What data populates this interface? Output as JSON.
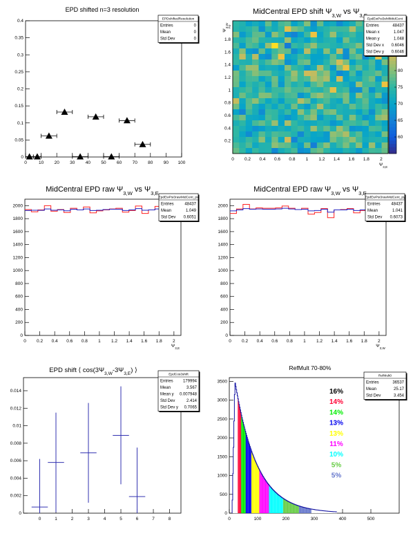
{
  "chart_data": [
    {
      "id": "p1",
      "type": "scatter",
      "title": "EPD shifted n=3 resolution",
      "stats": {
        "name": "EPDshiftedResolution",
        "rows": [
          [
            "Entries",
            "0"
          ],
          [
            "Mean",
            "0"
          ],
          [
            "Std Dev",
            "0"
          ]
        ]
      },
      "xlim": [
        0,
        100
      ],
      "ylim": [
        0,
        0.4
      ],
      "xticks": [
        "0",
        "10",
        "20",
        "30",
        "40",
        "50",
        "60",
        "70",
        "80",
        "90",
        "100"
      ],
      "yticks": [
        "0",
        "0.05",
        "0.1",
        "0.15",
        "0.2",
        "0.25",
        "0.3",
        "0.35",
        "0.4"
      ],
      "points": [
        [
          2.5,
          0.001,
          2.5
        ],
        [
          7.5,
          0.001,
          2.5
        ],
        [
          15,
          0.062,
          5
        ],
        [
          25,
          0.132,
          5
        ],
        [
          35,
          0.001,
          5
        ],
        [
          45,
          0.118,
          5
        ],
        [
          55,
          0.001,
          5
        ],
        [
          65,
          0.107,
          5
        ],
        [
          75,
          0.037,
          5
        ]
      ]
    },
    {
      "id": "p2",
      "type": "heatmap",
      "title": "MidCentral EPD shift Ψ3,W vs Ψ3,E",
      "xlabel": "Ψ3,E",
      "ylabel": "Ψ3,W",
      "stats": {
        "name": "EpdEwPsi3shiftMidCent",
        "rows": [
          [
            "Entries",
            "48437"
          ],
          [
            "Mean x",
            "1.047"
          ],
          [
            "Mean y",
            "1.048"
          ],
          [
            "Std Dev x",
            "0.6046"
          ],
          [
            "Std Dev y",
            "0.6046"
          ]
        ]
      },
      "xlim": [
        0,
        2.094
      ],
      "ylim": [
        0,
        2.094
      ],
      "xticks": [
        "0",
        "0.2",
        "0.4",
        "0.6",
        "0.8",
        "1",
        "1.2",
        "1.4",
        "1.6",
        "1.8",
        "2"
      ],
      "yticks": [
        "0.2",
        "0.4",
        "0.6",
        "0.8",
        "1",
        "1.2",
        "1.4",
        "1.6",
        "1.8",
        "2"
      ],
      "zlim": [
        55,
        95
      ],
      "zticks": [
        "60",
        "65",
        "70",
        "75",
        "80",
        "85",
        "90"
      ],
      "nbins": 24
    },
    {
      "id": "p3",
      "type": "line",
      "title": "MidCentral EPD raw Ψ3,W vs Ψ3,E",
      "xlabel": "Ψ3,E",
      "stats": {
        "name": "EpdEwPsi3rawMidCent_px",
        "rows": [
          [
            "Entries",
            "48437"
          ],
          [
            "Mean",
            "1.049"
          ],
          [
            "Std Dev",
            "0.6051"
          ]
        ]
      },
      "xlim": [
        0,
        2.094
      ],
      "ylim": [
        0,
        2100
      ],
      "xticks": [
        "0",
        "0.2",
        "0.4",
        "0.6",
        "0.8",
        "1",
        "1.2",
        "1.4",
        "1.6",
        "1.8",
        "2"
      ],
      "yticks": [
        "0",
        "200",
        "400",
        "600",
        "800",
        "1000",
        "1200",
        "1400",
        "1600",
        "1800",
        "2000"
      ],
      "series": [
        {
          "color": "#ff2020",
          "values": [
            1940,
            1905,
            1935,
            2000,
            1915,
            1940,
            1895,
            1960,
            1935,
            1980,
            1890,
            1920,
            1935,
            1950,
            1960,
            1900,
            1925,
            1995,
            1880,
            1935,
            1990,
            1885,
            1915,
            1895
          ]
        },
        {
          "color": "#2020c0",
          "values": [
            1925,
            1930,
            1928,
            1950,
            1930,
            1935,
            1922,
            1945,
            1935,
            1950,
            1925,
            1930,
            1940,
            1945,
            1945,
            1925,
            1935,
            1955,
            1930,
            1935,
            1950,
            1930,
            1925,
            1930
          ]
        }
      ]
    },
    {
      "id": "p4",
      "type": "line",
      "title": "MidCentral EPD raw Ψ3,W vs Ψ3,E",
      "xlabel": "Ψ3,W",
      "stats": {
        "name": "EpdEwPsi3rawMidCent_py",
        "rows": [
          [
            "Entries",
            "48437"
          ],
          [
            "Mean",
            "1.041"
          ],
          [
            "Std Dev",
            "0.6073"
          ]
        ]
      },
      "xlim": [
        0,
        2.094
      ],
      "ylim": [
        0,
        2100
      ],
      "xticks": [
        "0",
        "0.2",
        "0.4",
        "0.6",
        "0.8",
        "1",
        "1.2",
        "1.4",
        "1.6",
        "1.8",
        "2"
      ],
      "yticks": [
        "0",
        "200",
        "400",
        "600",
        "800",
        "1000",
        "1200",
        "1400",
        "1600",
        "1800",
        "2000"
      ],
      "series": [
        {
          "color": "#ff2020",
          "values": [
            1880,
            1950,
            2020,
            1950,
            1965,
            1960,
            1960,
            1965,
            1995,
            1960,
            1940,
            1960,
            1870,
            1895,
            1955,
            1815,
            1935,
            1940,
            1955,
            1890,
            1925,
            1960,
            1895,
            1940
          ]
        },
        {
          "color": "#2020c0",
          "values": [
            1920,
            1935,
            1955,
            1945,
            1950,
            1945,
            1945,
            1950,
            1960,
            1950,
            1940,
            1945,
            1920,
            1925,
            1945,
            1900,
            1935,
            1935,
            1945,
            1925,
            1935,
            1945,
            1925,
            1935
          ]
        }
      ]
    },
    {
      "id": "p5",
      "type": "scatter",
      "title": "EPD shift ⟨ cos(3Ψ3,W-3Ψ3,E) ⟩",
      "stats": {
        "name": "EpdCos3shift",
        "rows": [
          [
            "Entries",
            "179994"
          ],
          [
            "Mean",
            "3.567"
          ],
          [
            "Mean y",
            "0.007948"
          ],
          [
            "Std Dev",
            "2.414"
          ],
          [
            "Std Dev y",
            "0.7065"
          ]
        ]
      },
      "xlim": [
        -1,
        8.7
      ],
      "ylim": [
        0,
        0.0155
      ],
      "xticks": [
        "0",
        "1",
        "2",
        "3",
        "4",
        "5",
        "6",
        "7",
        "8"
      ],
      "yticks": [
        "0",
        "0.002",
        "0.004",
        "0.006",
        "0.008",
        "0.01",
        "0.012",
        "0.014"
      ],
      "points": [
        [
          0,
          0.0007,
          0.0055
        ],
        [
          1,
          0.0058,
          0.0057
        ],
        [
          3,
          0.0069,
          0.0057
        ],
        [
          5,
          0.0089,
          0.0056
        ],
        [
          6,
          0.0019,
          0.0056
        ]
      ]
    },
    {
      "id": "p6",
      "type": "bar",
      "title": "RefMult 70-80%",
      "stats": {
        "name": "RefMult0",
        "rows": [
          [
            "Entries",
            "36537"
          ],
          [
            "Mean",
            "25.17"
          ],
          [
            "Std Dev",
            "3.454"
          ]
        ]
      },
      "xlim": [
        0,
        600
      ],
      "ylim": [
        0,
        3600
      ],
      "xticks": [
        "0",
        "100",
        "200",
        "300",
        "400",
        "500"
      ],
      "yticks": [
        "0",
        "500",
        "1000",
        "1500",
        "2000",
        "2500",
        "3000",
        "3500"
      ],
      "bands": [
        {
          "from": 0,
          "to": 30,
          "color": "#ffffff"
        },
        {
          "from": 30,
          "to": 42,
          "color": "#ff0033"
        },
        {
          "from": 42,
          "to": 57,
          "color": "#00ee00"
        },
        {
          "from": 57,
          "to": 78,
          "color": "#0000ee"
        },
        {
          "from": 78,
          "to": 105,
          "color": "#ffff00"
        },
        {
          "from": 105,
          "to": 140,
          "color": "#ff00ff"
        },
        {
          "from": 140,
          "to": 190,
          "color": "#00ffff"
        },
        {
          "from": 190,
          "to": 245,
          "color": "#66cc44"
        },
        {
          "from": 245,
          "to": 290,
          "color": "#6677cc"
        }
      ],
      "legend": [
        {
          "label": "16%",
          "color": "#000000"
        },
        {
          "label": "14%",
          "color": "#ff0033"
        },
        {
          "label": "14%",
          "color": "#00ee00"
        },
        {
          "label": "13%",
          "color": "#0000ee"
        },
        {
          "label": "13%",
          "color": "#ffff00"
        },
        {
          "label": "11%",
          "color": "#ff00ff"
        },
        {
          "label": "10%",
          "color": "#00ffff"
        },
        {
          "label": "5%",
          "color": "#66cc44"
        },
        {
          "label": "5%",
          "color": "#6677cc"
        }
      ]
    }
  ]
}
